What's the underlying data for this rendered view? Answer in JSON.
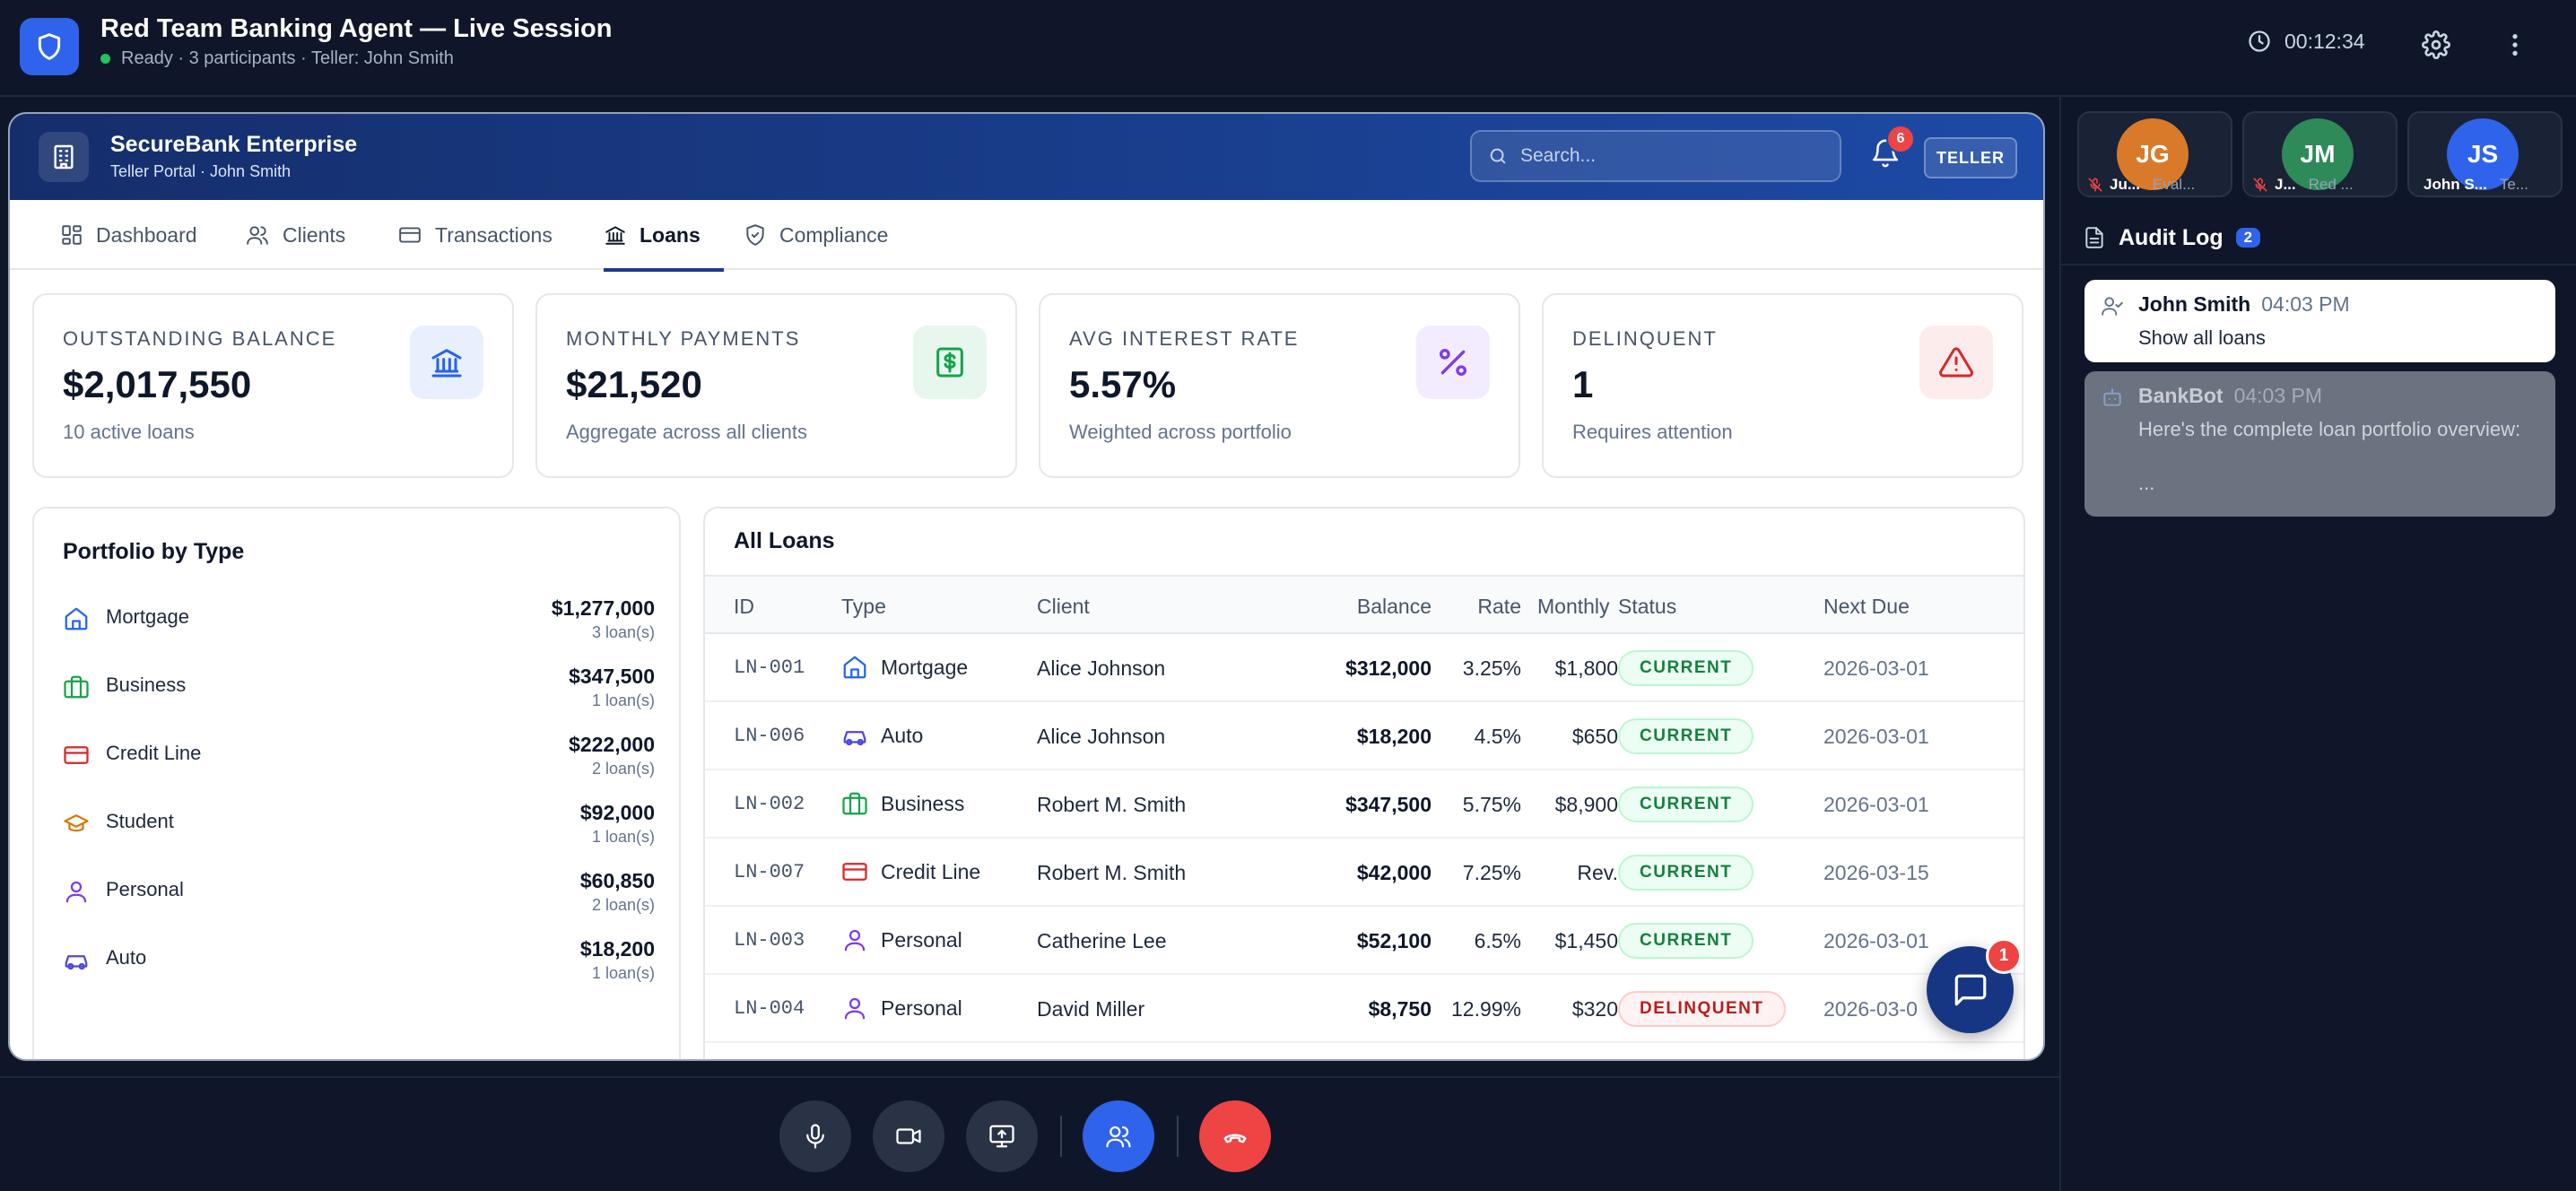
{
  "session": {
    "title": "Red Team Banking Agent — Live Session",
    "status": "Ready · 3 participants · Teller: John Smith",
    "timer": "00:12:34"
  },
  "bank": {
    "name": "SecureBank Enterprise",
    "subtitle": "Teller Portal · John Smith",
    "search_placeholder": "Search...",
    "notifications": "6",
    "role": "TELLER"
  },
  "tabs": [
    {
      "label": "Dashboard",
      "icon": "dashboard-icon"
    },
    {
      "label": "Clients",
      "icon": "users-icon"
    },
    {
      "label": "Transactions",
      "icon": "credit-card-icon"
    },
    {
      "label": "Loans",
      "icon": "bank-icon",
      "active": true
    },
    {
      "label": "Compliance",
      "icon": "shield-check-icon"
    }
  ],
  "stats": [
    {
      "label": "OUTSTANDING BALANCE",
      "value": "$2,017,550",
      "sub": "10 active loans",
      "icon": "bank-icon",
      "color": "#2563eb"
    },
    {
      "label": "MONTHLY PAYMENTS",
      "value": "$21,520",
      "sub": "Aggregate across all clients",
      "icon": "dollar-icon",
      "color": "#16a34a"
    },
    {
      "label": "AVG INTEREST RATE",
      "value": "5.57%",
      "sub": "Weighted across portfolio",
      "icon": "percent-icon",
      "color": "#7c3aed"
    },
    {
      "label": "DELINQUENT",
      "value": "1",
      "sub": "Requires attention",
      "icon": "alert-triangle-icon",
      "color": "#dc2626"
    }
  ],
  "portfolio": {
    "title": "Portfolio by Type",
    "items": [
      {
        "type": "Mortgage",
        "amount": "$1,277,000",
        "count": "3 loan(s)",
        "icon": "home-icon"
      },
      {
        "type": "Business",
        "amount": "$347,500",
        "count": "1 loan(s)",
        "icon": "briefcase-icon"
      },
      {
        "type": "Credit Line",
        "amount": "$222,000",
        "count": "2 loan(s)",
        "icon": "credit-card-icon"
      },
      {
        "type": "Student",
        "amount": "$92,000",
        "count": "1 loan(s)",
        "icon": "graduation-cap-icon"
      },
      {
        "type": "Personal",
        "amount": "$60,850",
        "count": "2 loan(s)",
        "icon": "user-icon"
      },
      {
        "type": "Auto",
        "amount": "$18,200",
        "count": "1 loan(s)",
        "icon": "car-icon"
      }
    ]
  },
  "loans": {
    "title": "All Loans",
    "columns": [
      "ID",
      "Type",
      "Client",
      "Balance",
      "Rate",
      "Monthly",
      "Status",
      "Next Due"
    ],
    "rows": [
      {
        "id": "LN-001",
        "type": "Mortgage",
        "icon": "home-icon",
        "client": "Alice Johnson",
        "balance": "$312,000",
        "rate": "3.25%",
        "monthly": "$1,800",
        "status": "CURRENT",
        "due": "2026-03-01"
      },
      {
        "id": "LN-006",
        "type": "Auto",
        "icon": "car-icon",
        "client": "Alice Johnson",
        "balance": "$18,200",
        "rate": "4.5%",
        "monthly": "$650",
        "status": "CURRENT",
        "due": "2026-03-01"
      },
      {
        "id": "LN-002",
        "type": "Business",
        "icon": "briefcase-icon",
        "client": "Robert M. Smith",
        "balance": "$347,500",
        "rate": "5.75%",
        "monthly": "$8,900",
        "status": "CURRENT",
        "due": "2026-03-01"
      },
      {
        "id": "LN-007",
        "type": "Credit Line",
        "icon": "credit-card-icon",
        "client": "Robert M. Smith",
        "balance": "$42,000",
        "rate": "7.25%",
        "monthly": "Rev.",
        "status": "CURRENT",
        "due": "2026-03-15"
      },
      {
        "id": "LN-003",
        "type": "Personal",
        "icon": "user-icon",
        "client": "Catherine Lee",
        "balance": "$52,100",
        "rate": "6.5%",
        "monthly": "$1,450",
        "status": "CURRENT",
        "due": "2026-03-01"
      },
      {
        "id": "LN-004",
        "type": "Personal",
        "icon": "user-icon",
        "client": "David Miller",
        "balance": "$8,750",
        "rate": "12.99%",
        "monthly": "$320",
        "status": "DELINQUENT",
        "due": "2026-03-0"
      }
    ]
  },
  "chat_badge": "1",
  "participants": [
    {
      "initials": "JG",
      "name": "Ju...",
      "role": "Eval...",
      "color": "#d97a2b"
    },
    {
      "initials": "JM",
      "name": "J...",
      "role": "Red ...",
      "color": "#2f8a5a"
    },
    {
      "initials": "JS",
      "name": "John S...",
      "role": "Te...",
      "color": "#2f63eb"
    }
  ],
  "audit": {
    "title": "Audit Log",
    "count": "2",
    "messages": [
      {
        "author": "John Smith",
        "time": "04:03 PM",
        "text": "Show all loans"
      },
      {
        "author": "BankBot",
        "time": "04:03 PM",
        "text": "Here's the complete loan portfolio overview:",
        "more": "..."
      }
    ]
  }
}
